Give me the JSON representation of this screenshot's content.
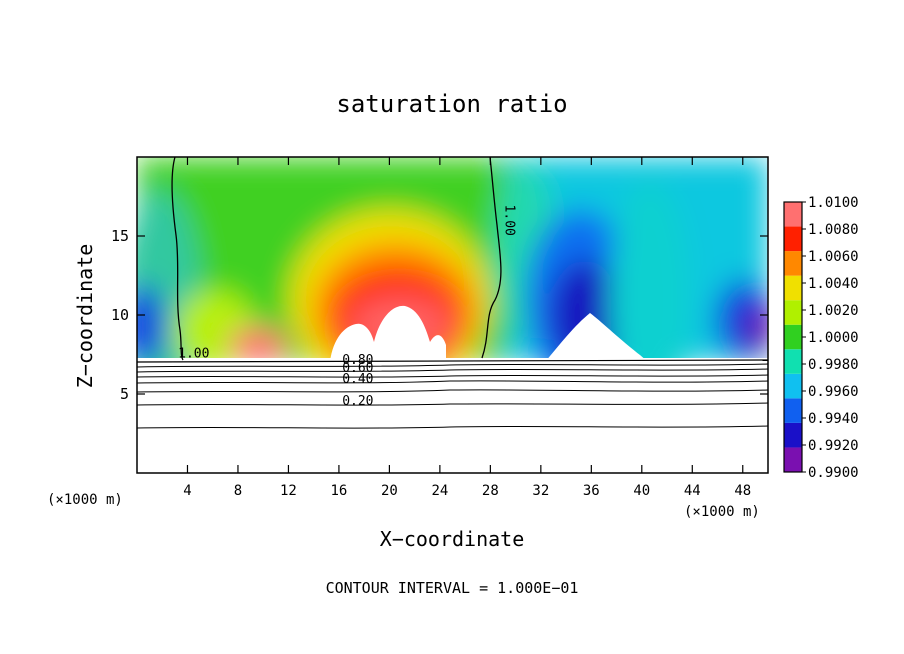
{
  "chart_data": {
    "type": "heatmap",
    "title": "saturation ratio",
    "xlabel": "X−coordinate",
    "ylabel": "Z−coordinate",
    "x_unit_left": "(×1000 m)",
    "x_unit_right": "(×1000 m)",
    "footer": "CONTOUR INTERVAL = 1.000E−01",
    "xlim": [
      0,
      50
    ],
    "ylim": [
      0,
      20
    ],
    "x_ticks": [
      4,
      8,
      12,
      16,
      20,
      24,
      28,
      32,
      36,
      40,
      44,
      48
    ],
    "x_tick_labels": [
      "4",
      "8",
      "12",
      "16",
      "20",
      "24",
      "28",
      "32",
      "36",
      "40",
      "44",
      "48"
    ],
    "y_ticks": [
      5,
      10,
      15
    ],
    "y_tick_labels": [
      "5",
      "10",
      "15"
    ],
    "colorbar": {
      "levels": [
        0.99,
        0.992,
        0.994,
        0.996,
        0.998,
        1.0,
        1.002,
        1.004,
        1.006,
        1.008,
        1.01
      ],
      "labels": [
        "0.9900",
        "0.9920",
        "0.9940",
        "0.9960",
        "0.9980",
        "1.0000",
        "1.0020",
        "1.0040",
        "1.0060",
        "1.0080",
        "1.0100"
      ],
      "colors": [
        "#7a10b0",
        "#1a10c8",
        "#1060f0",
        "#10c0f0",
        "#10e0b0",
        "#30d020",
        "#b0f000",
        "#f0e000",
        "#ff8800",
        "#ff2000",
        "#ff7070"
      ]
    },
    "contour_labels": [
      {
        "text": "1.00",
        "x": 4.5,
        "z": 7.3
      },
      {
        "text": "1.00",
        "x": 29.2,
        "z": 16.0
      },
      {
        "text": "0.80",
        "x": 17.5,
        "z": 6.9
      },
      {
        "text": "0.60",
        "x": 17.5,
        "z": 6.4
      },
      {
        "text": "0.40",
        "x": 17.5,
        "z": 5.7
      },
      {
        "text": "0.20",
        "x": 17.5,
        "z": 4.3
      }
    ]
  },
  "colors": {
    "background": "#ffffff",
    "axis": "#000000"
  }
}
